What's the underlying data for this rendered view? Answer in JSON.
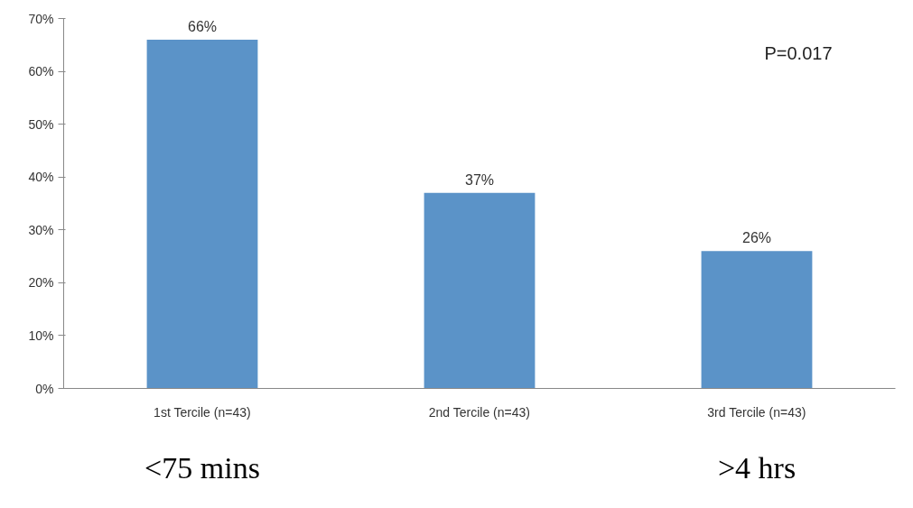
{
  "chart_data": {
    "type": "bar",
    "categories": [
      "1st Tercile (n=43)",
      "2nd Tercile (n=43)",
      "3rd Tercile (n=43)"
    ],
    "values": [
      66,
      37,
      26
    ],
    "color": "#5b93c8",
    "data_labels": true,
    "value_labels": [
      "66%",
      "37%",
      "26%"
    ],
    "ylim": [
      0,
      70
    ],
    "yticks": [
      {
        "value": 0,
        "label": "0%"
      },
      {
        "value": 10,
        "label": "10%"
      },
      {
        "value": 20,
        "label": "20%"
      },
      {
        "value": 30,
        "label": "30%"
      },
      {
        "value": 40,
        "label": "40%"
      },
      {
        "value": 50,
        "label": "50%"
      },
      {
        "value": 60,
        "label": "60%"
      },
      {
        "value": 70,
        "label": "70%"
      }
    ],
    "grid": false,
    "annotations": [
      "P=0.017",
      "<75 mins",
      ">4 hrs"
    ]
  }
}
